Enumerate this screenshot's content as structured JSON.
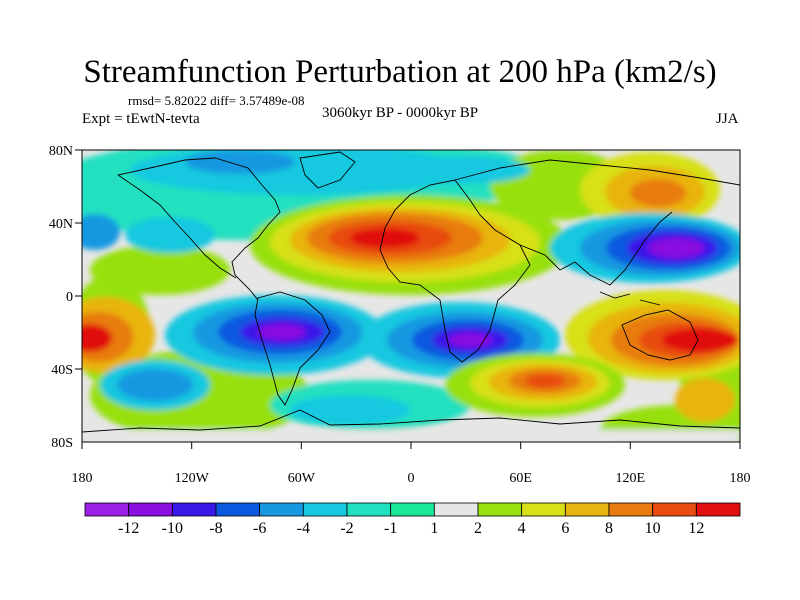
{
  "title": "Streamfunction Perturbation at 200 hPa (km2/s)",
  "stats": "rmsd= 5.82022 diff= 3.57489e-08",
  "experiment": "Expt = tEwtN-tevta",
  "period": "3060kyr BP - 0000kyr BP",
  "season": "JJA",
  "axes": {
    "x_ticks": [
      "180",
      "120W",
      "60W",
      "0",
      "60E",
      "120E",
      "180"
    ],
    "y_ticks": [
      "80N",
      "40N",
      "0",
      "40S",
      "80S"
    ]
  },
  "colorbar": {
    "labels": [
      "-12",
      "-10",
      "-8",
      "-6",
      "-4",
      "-2",
      "-1",
      "1",
      "2",
      "4",
      "6",
      "8",
      "10",
      "12"
    ],
    "colors": [
      "#8a10e0",
      "#3a18e8",
      "#0a58e0",
      "#1898e0",
      "#18c8e0",
      "#20e0c0",
      "#18e898",
      "#e6e6e6",
      "#98e010",
      "#d8e018",
      "#e8b410",
      "#e87c10",
      "#e84c10",
      "#e01010"
    ]
  }
}
